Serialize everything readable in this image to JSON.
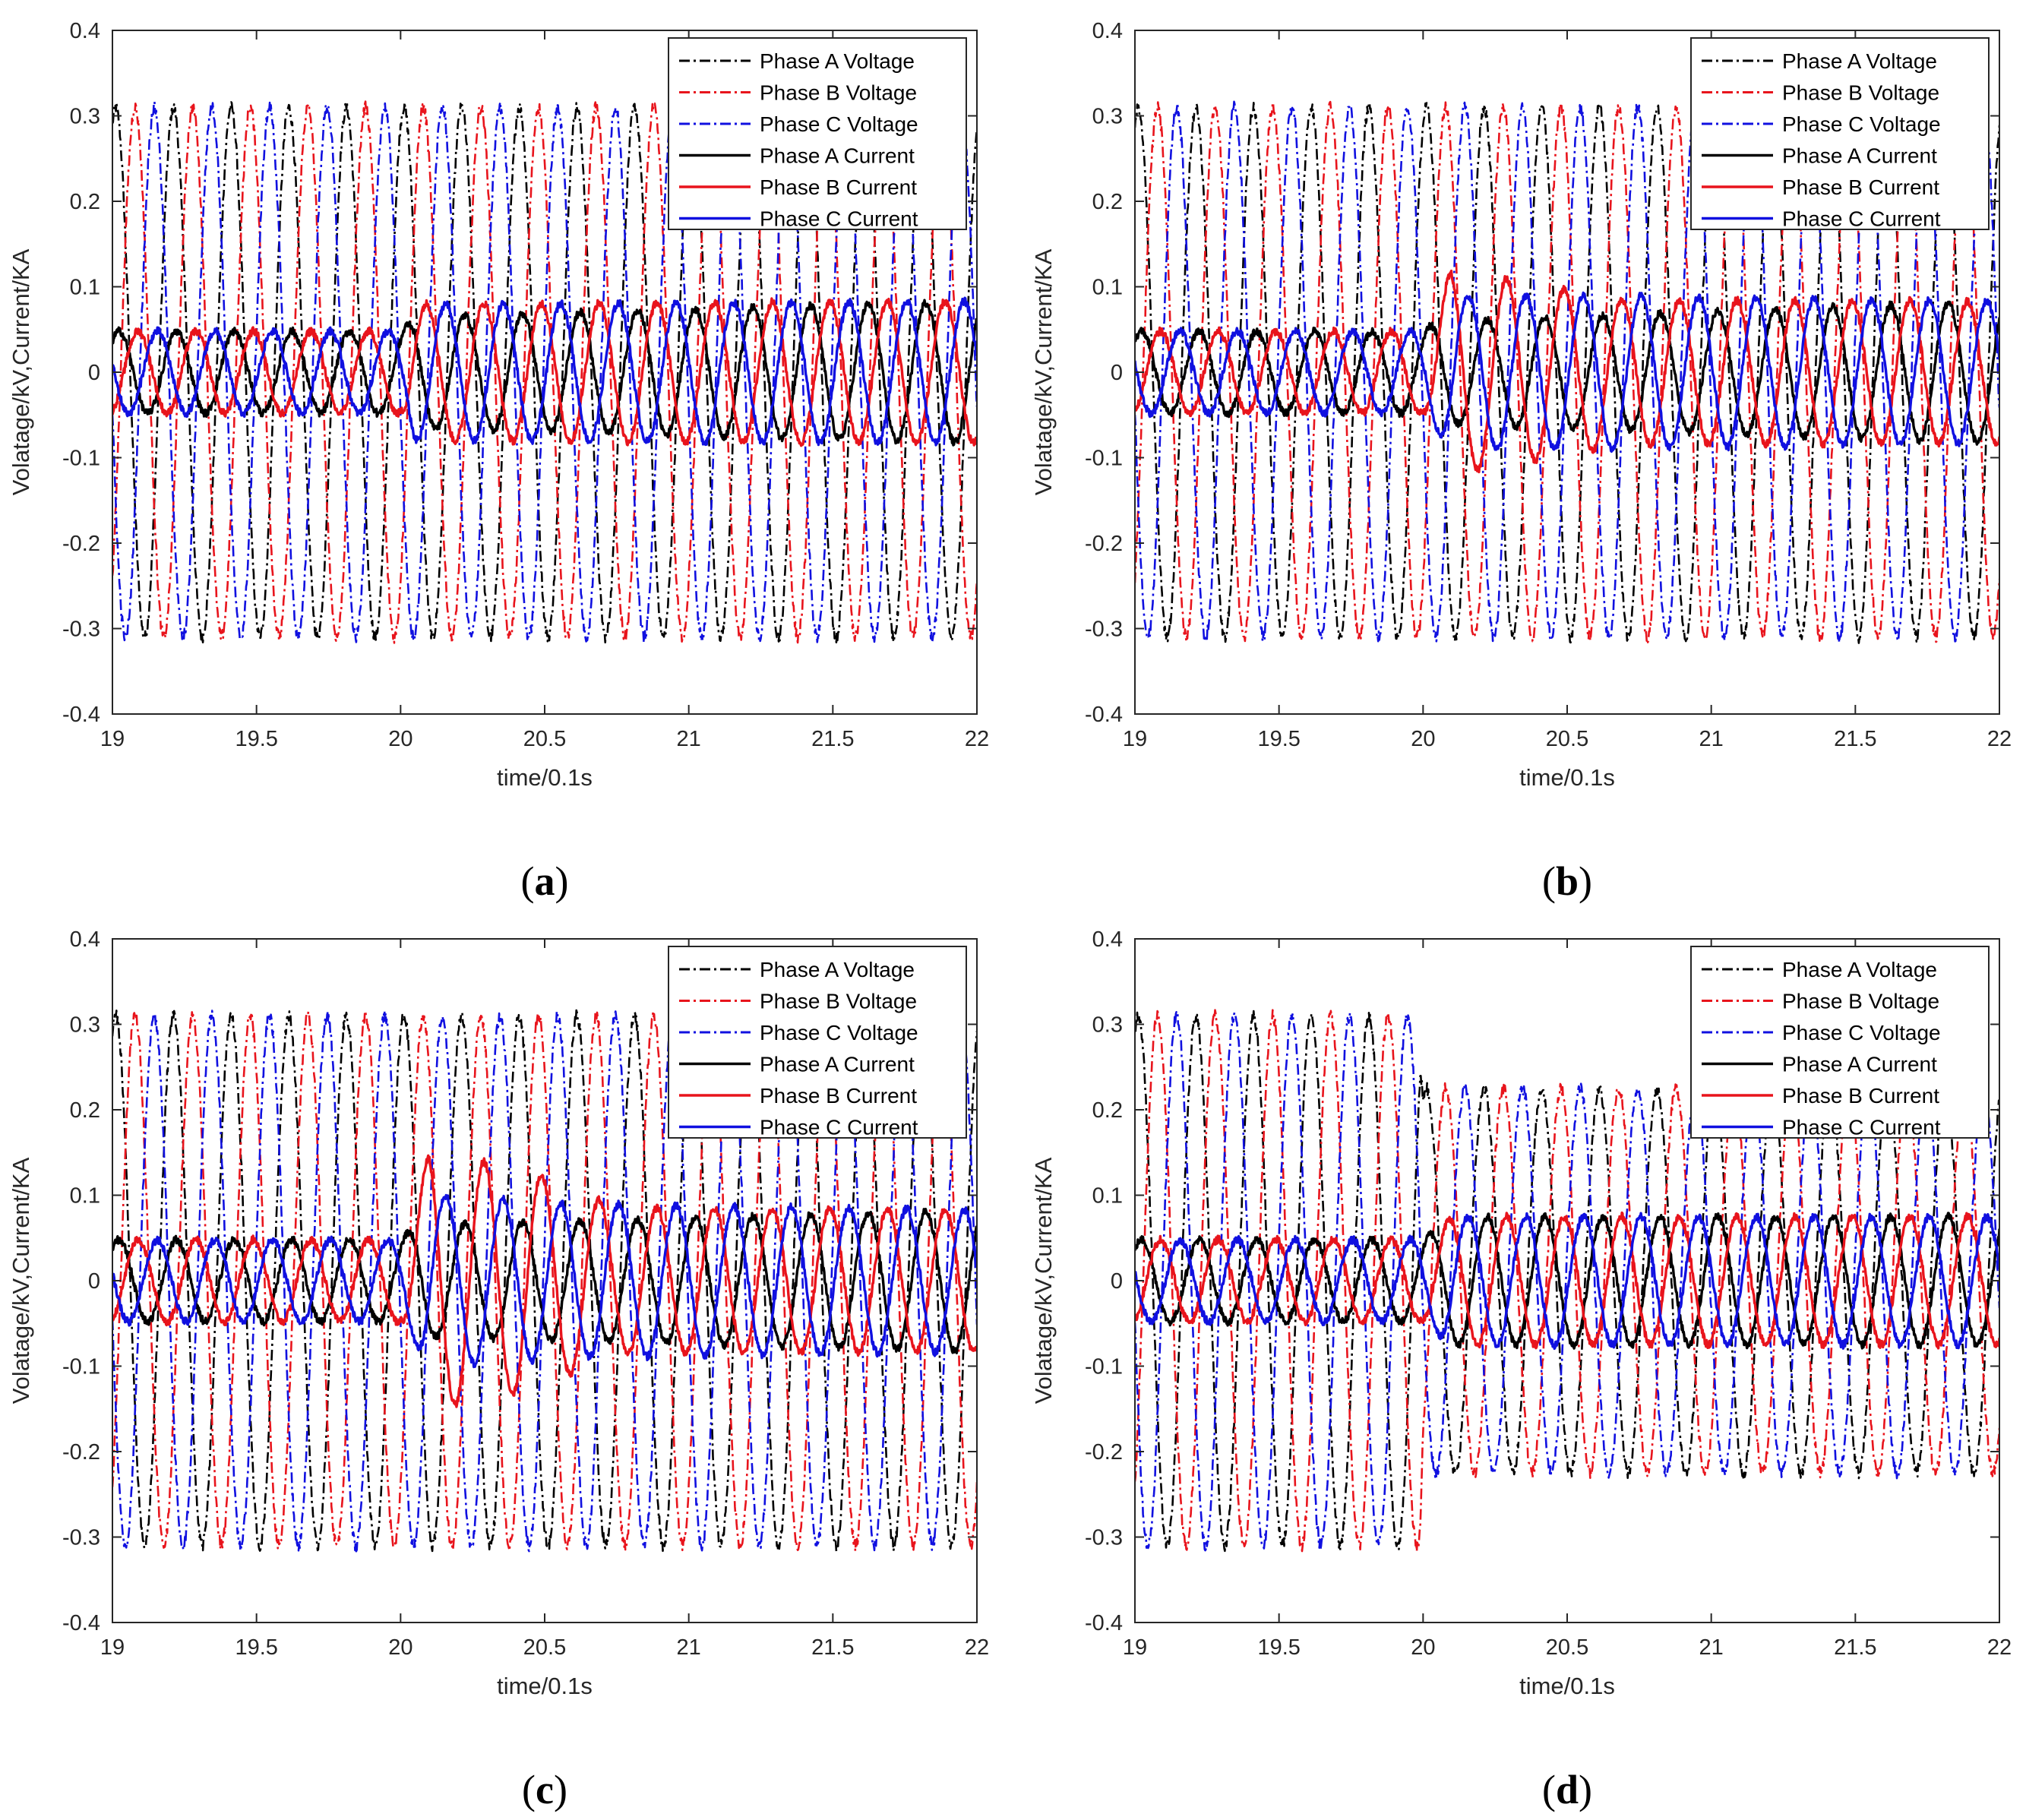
{
  "figure": {
    "panels": [
      "(a)",
      "(b)",
      "(c)",
      "(d)"
    ]
  },
  "chart_data": [
    {
      "type": "line",
      "panel": "a",
      "caption_prefix": "(",
      "caption_letter": "a",
      "caption_suffix": ")",
      "xlabel": "time/0.1s",
      "ylabel": "Volatage/kV,Current/KA",
      "xlim": [
        19,
        22
      ],
      "ylim": [
        -0.4,
        0.4
      ],
      "xticks": [
        "19",
        "19.5",
        "20",
        "20.5",
        "21",
        "21.5",
        "22"
      ],
      "yticks": [
        "-0.4",
        "-0.3",
        "-0.2",
        "-0.1",
        "0",
        "0.1",
        "0.2",
        "0.3",
        "0.4"
      ],
      "legend_position": "top-right",
      "series": [
        {
          "name": "Phase A Voltage",
          "color": "#000000",
          "style": "dashdot",
          "phase_deg": 0,
          "amplitude": [
            [
              19,
              0.31
            ],
            [
              22,
              0.31
            ]
          ]
        },
        {
          "name": "Phase B Voltage",
          "color": "#e8141c",
          "style": "dashdot",
          "phase_deg": -120,
          "amplitude": [
            [
              19,
              0.31
            ],
            [
              22,
              0.31
            ]
          ]
        },
        {
          "name": "Phase C Voltage",
          "color": "#1010e0",
          "style": "dashdot",
          "phase_deg": 120,
          "amplitude": [
            [
              19,
              0.31
            ],
            [
              22,
              0.31
            ]
          ]
        },
        {
          "name": "Phase A Current",
          "color": "#000000",
          "style": "solid",
          "phase_deg": -20,
          "amplitude": [
            [
              19,
              0.048
            ],
            [
              20,
              0.048
            ],
            [
              20.05,
              0.065
            ],
            [
              22,
              0.083
            ]
          ]
        },
        {
          "name": "Phase B Current",
          "color": "#e8141c",
          "style": "solid",
          "phase_deg": -140,
          "amplitude": [
            [
              19,
              0.048
            ],
            [
              20,
              0.048
            ],
            [
              20.05,
              0.08
            ],
            [
              22,
              0.083
            ]
          ]
        },
        {
          "name": "Phase C Current",
          "color": "#1010e0",
          "style": "solid",
          "phase_deg": 100,
          "amplitude": [
            [
              19,
              0.048
            ],
            [
              20,
              0.048
            ],
            [
              20.05,
              0.08
            ],
            [
              22,
              0.083
            ]
          ]
        }
      ]
    },
    {
      "type": "line",
      "panel": "b",
      "caption_prefix": "(",
      "caption_letter": "b",
      "caption_suffix": ")",
      "xlabel": "time/0.1s",
      "ylabel": "Volatage/kV,Current/KA",
      "xlim": [
        19,
        22
      ],
      "ylim": [
        -0.4,
        0.4
      ],
      "xticks": [
        "19",
        "19.5",
        "20",
        "20.5",
        "21",
        "21.5",
        "22"
      ],
      "yticks": [
        "-0.4",
        "-0.3",
        "-0.2",
        "-0.1",
        "0",
        "0.1",
        "0.2",
        "0.3",
        "0.4"
      ],
      "legend_position": "top-right",
      "series": [
        {
          "name": "Phase A Voltage",
          "color": "#000000",
          "style": "dashdot",
          "phase_deg": 0,
          "amplitude": [
            [
              19,
              0.31
            ],
            [
              22,
              0.31
            ]
          ]
        },
        {
          "name": "Phase B Voltage",
          "color": "#e8141c",
          "style": "dashdot",
          "phase_deg": -120,
          "amplitude": [
            [
              19,
              0.31
            ],
            [
              22,
              0.31
            ]
          ]
        },
        {
          "name": "Phase C Voltage",
          "color": "#1010e0",
          "style": "dashdot",
          "phase_deg": 120,
          "amplitude": [
            [
              19,
              0.31
            ],
            [
              22,
              0.31
            ]
          ]
        },
        {
          "name": "Phase A Current",
          "color": "#000000",
          "style": "solid",
          "phase_deg": -20,
          "amplitude": [
            [
              19,
              0.048
            ],
            [
              20,
              0.048
            ],
            [
              20.05,
              0.06
            ],
            [
              22,
              0.083
            ]
          ]
        },
        {
          "name": "Phase B Current",
          "color": "#e8141c",
          "style": "solid",
          "phase_deg": -140,
          "amplitude": [
            [
              19,
              0.048
            ],
            [
              20,
              0.048
            ],
            [
              20.1,
              0.12
            ],
            [
              20.45,
              0.1
            ],
            [
              20.7,
              0.085
            ],
            [
              22,
              0.083
            ]
          ]
        },
        {
          "name": "Phase C Current",
          "color": "#1010e0",
          "style": "solid",
          "phase_deg": 100,
          "amplitude": [
            [
              19,
              0.048
            ],
            [
              20,
              0.048
            ],
            [
              20.1,
              0.09
            ],
            [
              20.6,
              0.09
            ],
            [
              22,
              0.083
            ]
          ]
        }
      ]
    },
    {
      "type": "line",
      "panel": "c",
      "caption_prefix": "(",
      "caption_letter": "c",
      "caption_suffix": ")",
      "xlabel": "time/0.1s",
      "ylabel": "Volatage/kV,Current/KA",
      "xlim": [
        19,
        22
      ],
      "ylim": [
        -0.4,
        0.4
      ],
      "xticks": [
        "19",
        "19.5",
        "20",
        "20.5",
        "21",
        "21.5",
        "22"
      ],
      "yticks": [
        "-0.4",
        "-0.3",
        "-0.2",
        "-0.1",
        "0",
        "0.1",
        "0.2",
        "0.3",
        "0.4"
      ],
      "legend_position": "top-right",
      "series": [
        {
          "name": "Phase A Voltage",
          "color": "#000000",
          "style": "dashdot",
          "phase_deg": 0,
          "amplitude": [
            [
              19,
              0.31
            ],
            [
              22,
              0.31
            ]
          ]
        },
        {
          "name": "Phase B Voltage",
          "color": "#e8141c",
          "style": "dashdot",
          "phase_deg": -120,
          "amplitude": [
            [
              19,
              0.31
            ],
            [
              22,
              0.31
            ]
          ]
        },
        {
          "name": "Phase C Voltage",
          "color": "#1010e0",
          "style": "dashdot",
          "phase_deg": 120,
          "amplitude": [
            [
              19,
              0.31
            ],
            [
              22,
              0.31
            ]
          ]
        },
        {
          "name": "Phase A Current",
          "color": "#000000",
          "style": "solid",
          "phase_deg": -20,
          "amplitude": [
            [
              19,
              0.048
            ],
            [
              20,
              0.048
            ],
            [
              20.05,
              0.065
            ],
            [
              22,
              0.083
            ]
          ]
        },
        {
          "name": "Phase B Current",
          "color": "#e8141c",
          "style": "solid",
          "phase_deg": -140,
          "amplitude": [
            [
              19,
              0.048
            ],
            [
              20,
              0.048
            ],
            [
              20.1,
              0.15
            ],
            [
              20.45,
              0.13
            ],
            [
              20.75,
              0.085
            ],
            [
              22,
              0.083
            ]
          ]
        },
        {
          "name": "Phase C Current",
          "color": "#1010e0",
          "style": "solid",
          "phase_deg": 100,
          "amplitude": [
            [
              19,
              0.048
            ],
            [
              20,
              0.048
            ],
            [
              20.1,
              0.1
            ],
            [
              20.6,
              0.09
            ],
            [
              22,
              0.083
            ]
          ]
        }
      ]
    },
    {
      "type": "line",
      "panel": "d",
      "caption_prefix": "(",
      "caption_letter": "d",
      "caption_suffix": ")",
      "xlabel": "time/0.1s",
      "ylabel": "Volatage/kV,Current/KA",
      "xlim": [
        19,
        22
      ],
      "ylim": [
        -0.4,
        0.4
      ],
      "xticks": [
        "19",
        "19.5",
        "20",
        "20.5",
        "21",
        "21.5",
        "22"
      ],
      "yticks": [
        "-0.4",
        "-0.3",
        "-0.2",
        "-0.1",
        "0",
        "0.1",
        "0.2",
        "0.3",
        "0.4"
      ],
      "legend_position": "top-right",
      "series": [
        {
          "name": "Phase A Voltage",
          "color": "#000000",
          "style": "dashdot",
          "phase_deg": 0,
          "amplitude": [
            [
              19,
              0.31
            ],
            [
              19.99,
              0.31
            ],
            [
              20.0,
              0.225
            ],
            [
              22,
              0.225
            ]
          ]
        },
        {
          "name": "Phase B Voltage",
          "color": "#e8141c",
          "style": "dashdot",
          "phase_deg": -120,
          "amplitude": [
            [
              19,
              0.31
            ],
            [
              19.99,
              0.31
            ],
            [
              20.0,
              0.225
            ],
            [
              22,
              0.225
            ]
          ]
        },
        {
          "name": "Phase C Voltage",
          "color": "#1010e0",
          "style": "dashdot",
          "phase_deg": 120,
          "amplitude": [
            [
              19,
              0.31
            ],
            [
              19.99,
              0.31
            ],
            [
              20.0,
              0.225
            ],
            [
              22,
              0.225
            ]
          ]
        },
        {
          "name": "Phase A Current",
          "color": "#000000",
          "style": "solid",
          "phase_deg": -20,
          "amplitude": [
            [
              19,
              0.048
            ],
            [
              20,
              0.048
            ],
            [
              20.1,
              0.075
            ],
            [
              22,
              0.075
            ]
          ]
        },
        {
          "name": "Phase B Current",
          "color": "#e8141c",
          "style": "solid",
          "phase_deg": -140,
          "amplitude": [
            [
              19,
              0.048
            ],
            [
              20,
              0.048
            ],
            [
              20.1,
              0.075
            ],
            [
              22,
              0.075
            ]
          ]
        },
        {
          "name": "Phase C Current",
          "color": "#1010e0",
          "style": "solid",
          "phase_deg": 100,
          "amplitude": [
            [
              19,
              0.048
            ],
            [
              20,
              0.048
            ],
            [
              20.1,
              0.075
            ],
            [
              22,
              0.075
            ]
          ]
        }
      ]
    }
  ]
}
